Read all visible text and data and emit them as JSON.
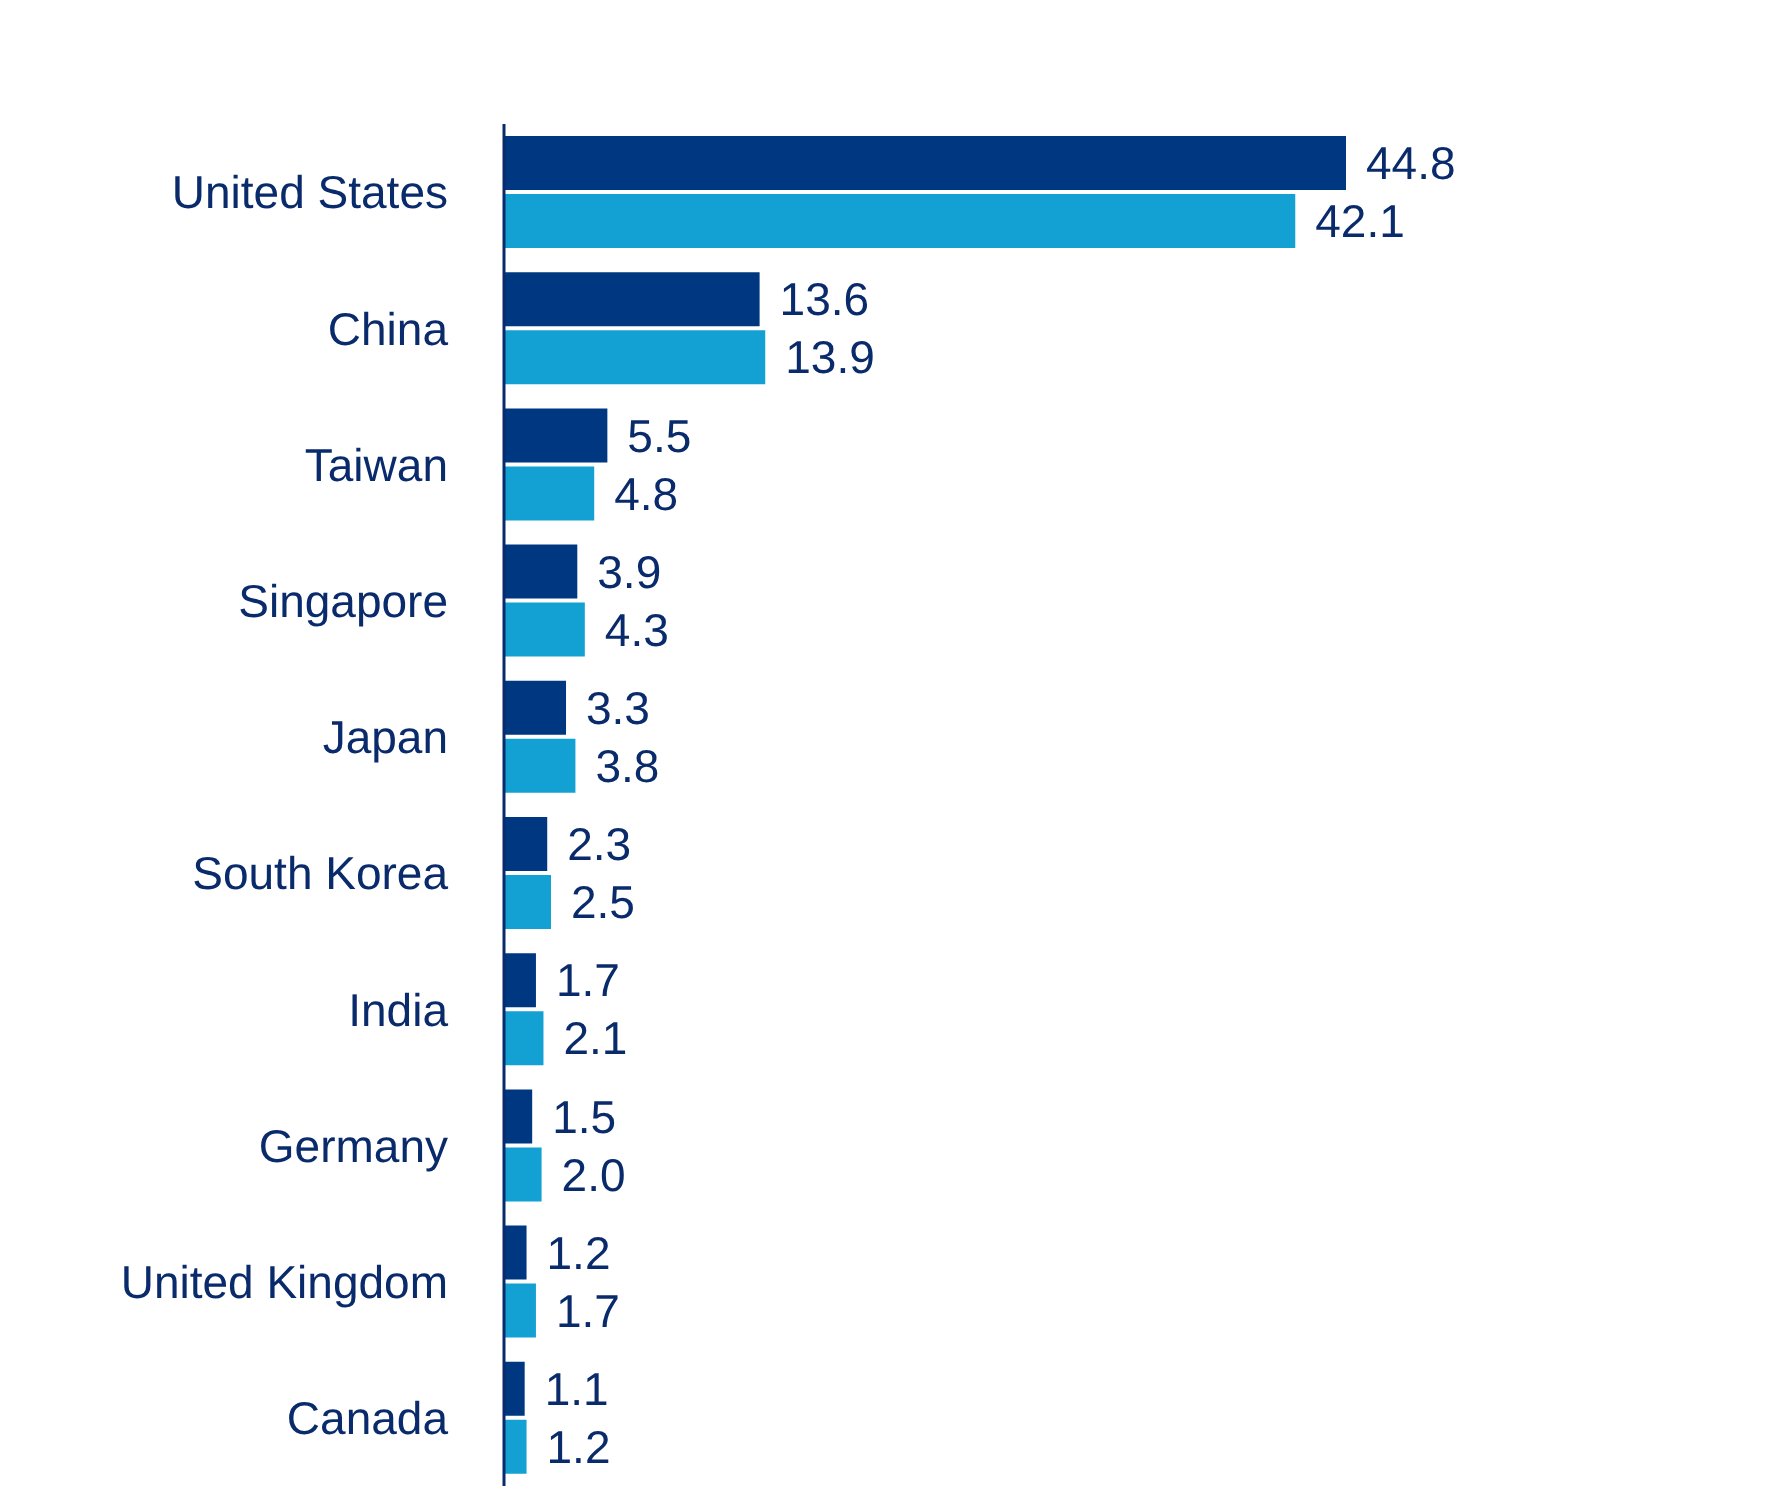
{
  "chart_data": {
    "type": "bar",
    "orientation": "horizontal",
    "legend": false,
    "categories": [
      "United States",
      "China",
      "Taiwan",
      "Singapore",
      "Japan",
      "South Korea",
      "India",
      "Germany",
      "United Kingdom",
      "Canada"
    ],
    "series": [
      {
        "color": "#003781",
        "values": [
          44.8,
          13.6,
          5.5,
          3.9,
          3.3,
          2.3,
          1.7,
          1.5,
          1.2,
          1.1
        ],
        "value_labels": [
          "44.8",
          "13.6",
          "5.5",
          "3.9",
          "3.3",
          "2.3",
          "1.7",
          "1.5",
          "1.2",
          "1.1"
        ]
      },
      {
        "color": "#13a0d3",
        "values": [
          42.1,
          13.9,
          4.8,
          4.3,
          3.8,
          2.5,
          2.1,
          2.0,
          1.7,
          1.2
        ],
        "value_labels": [
          "42.1",
          "13.9",
          "4.8",
          "4.3",
          "3.8",
          "2.5",
          "2.1",
          "2.0",
          "1.7",
          "1.2"
        ]
      }
    ]
  }
}
